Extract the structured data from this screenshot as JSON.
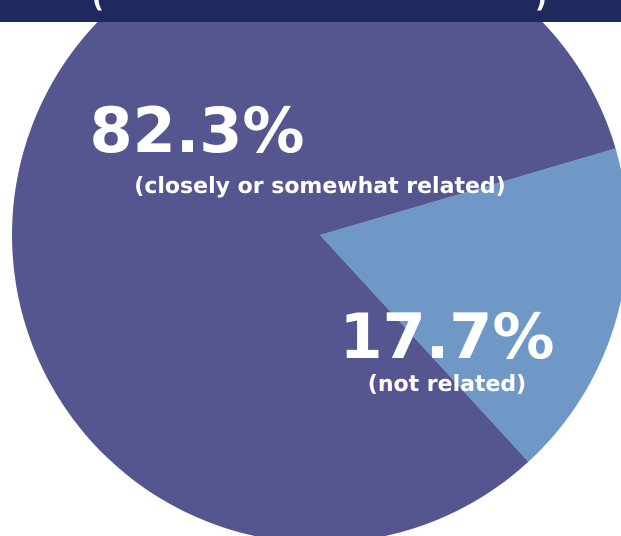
{
  "title_bar": {
    "left_glyph": "(",
    "right_glyph": ")"
  },
  "colors": {
    "title_background": "#1e2a5e",
    "related_slice": "#55568f",
    "not_related_slice": "#7098c7",
    "label_text": "#ffffff"
  },
  "chart_data": {
    "type": "pie",
    "slices": [
      {
        "value": 82.3,
        "value_label": "82.3%",
        "label": "(closely or somewhat related)"
      },
      {
        "value": 17.7,
        "value_label": "17.7%",
        "label": "(not related)"
      }
    ]
  }
}
